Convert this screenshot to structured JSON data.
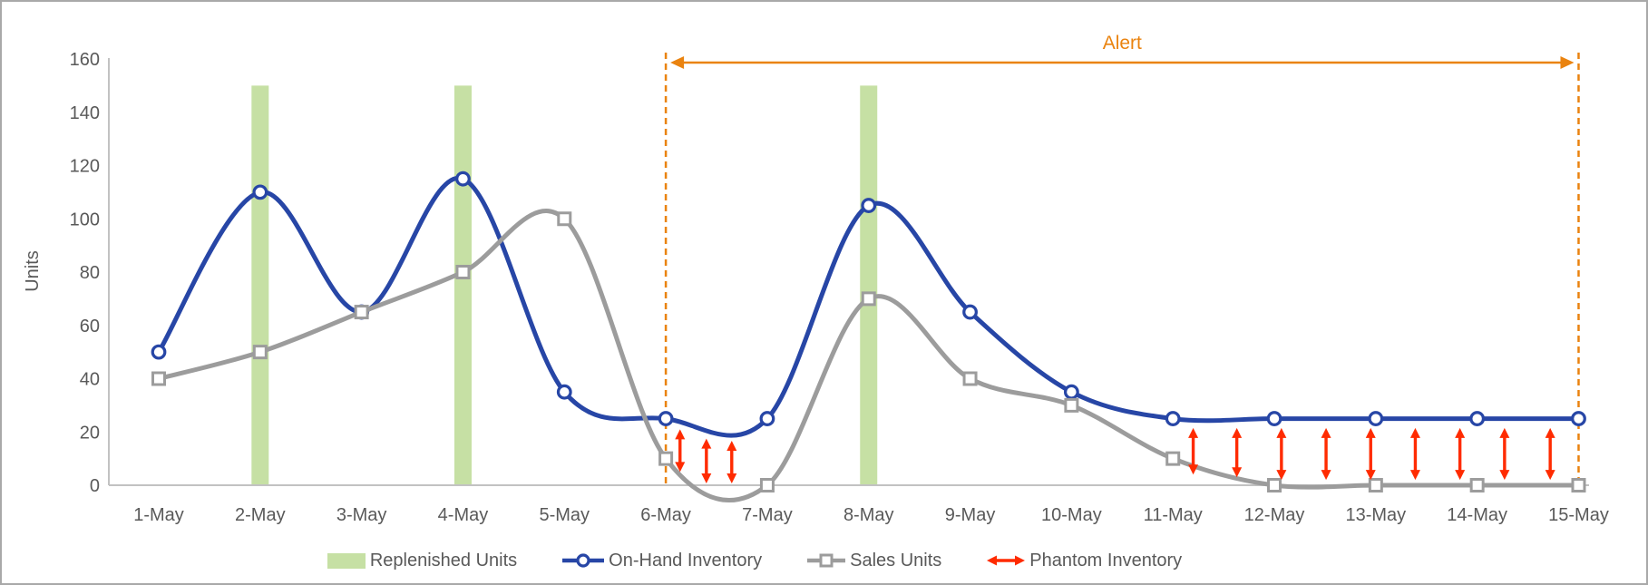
{
  "chart_data": {
    "type": "line",
    "title": "",
    "xlabel": "",
    "ylabel": "Units",
    "ylim": [
      0,
      160
    ],
    "yticks": [
      0,
      20,
      40,
      60,
      80,
      100,
      120,
      140,
      160
    ],
    "grid": false,
    "categories": [
      "1-May",
      "2-May",
      "3-May",
      "4-May",
      "5-May",
      "6-May",
      "7-May",
      "8-May",
      "9-May",
      "10-May",
      "11-May",
      "12-May",
      "13-May",
      "14-May",
      "15-May"
    ],
    "series": [
      {
        "name": "Replenished Units",
        "render": "bar",
        "color": "#C6E0A4",
        "values": [
          0,
          150,
          0,
          150,
          0,
          0,
          0,
          150,
          0,
          0,
          0,
          0,
          0,
          0,
          0
        ]
      },
      {
        "name": "On-Hand Inventory",
        "render": "line",
        "marker": "circle",
        "color": "#2746A6",
        "smooth": true,
        "values": [
          50,
          110,
          65,
          115,
          35,
          25,
          25,
          105,
          65,
          35,
          25,
          25,
          25,
          25,
          25
        ]
      },
      {
        "name": "Sales Units",
        "render": "line",
        "marker": "square",
        "color": "#9C9C9C",
        "smooth": true,
        "values": [
          40,
          50,
          65,
          80,
          100,
          10,
          0,
          70,
          40,
          30,
          10,
          0,
          0,
          0,
          0
        ]
      }
    ],
    "phantom": {
      "name": "Phantom Inventory",
      "color": "#FF2B00",
      "arrows": [
        {
          "x": 5.14,
          "top": 21.0,
          "bottom": 5.0
        },
        {
          "x": 5.4,
          "top": 17.5,
          "bottom": 0.7
        },
        {
          "x": 5.65,
          "top": 16.7,
          "bottom": 0.7
        },
        {
          "x": 10.2,
          "top": 21.5,
          "bottom": 4.0
        },
        {
          "x": 10.63,
          "top": 21.5,
          "bottom": 3.0
        },
        {
          "x": 11.07,
          "top": 21.5,
          "bottom": 2.0
        },
        {
          "x": 11.51,
          "top": 21.5,
          "bottom": 2.0
        },
        {
          "x": 11.95,
          "top": 21.5,
          "bottom": 2.0
        },
        {
          "x": 12.39,
          "top": 21.5,
          "bottom": 2.0
        },
        {
          "x": 12.83,
          "top": 21.5,
          "bottom": 2.0
        },
        {
          "x": 13.27,
          "top": 21.5,
          "bottom": 2.0
        },
        {
          "x": 13.72,
          "top": 21.5,
          "bottom": 2.0
        }
      ]
    },
    "alert": {
      "label": "Alert",
      "color": "#EA830F",
      "start_category": "6-May",
      "end_category": "15-May"
    },
    "legend": {
      "position": "bottom",
      "entries": [
        "Replenished Units",
        "On-Hand Inventory",
        "Sales Units",
        "Phantom Inventory"
      ]
    },
    "axis": {
      "line_color": "#C2C2C2",
      "text_color": "#595959"
    }
  }
}
